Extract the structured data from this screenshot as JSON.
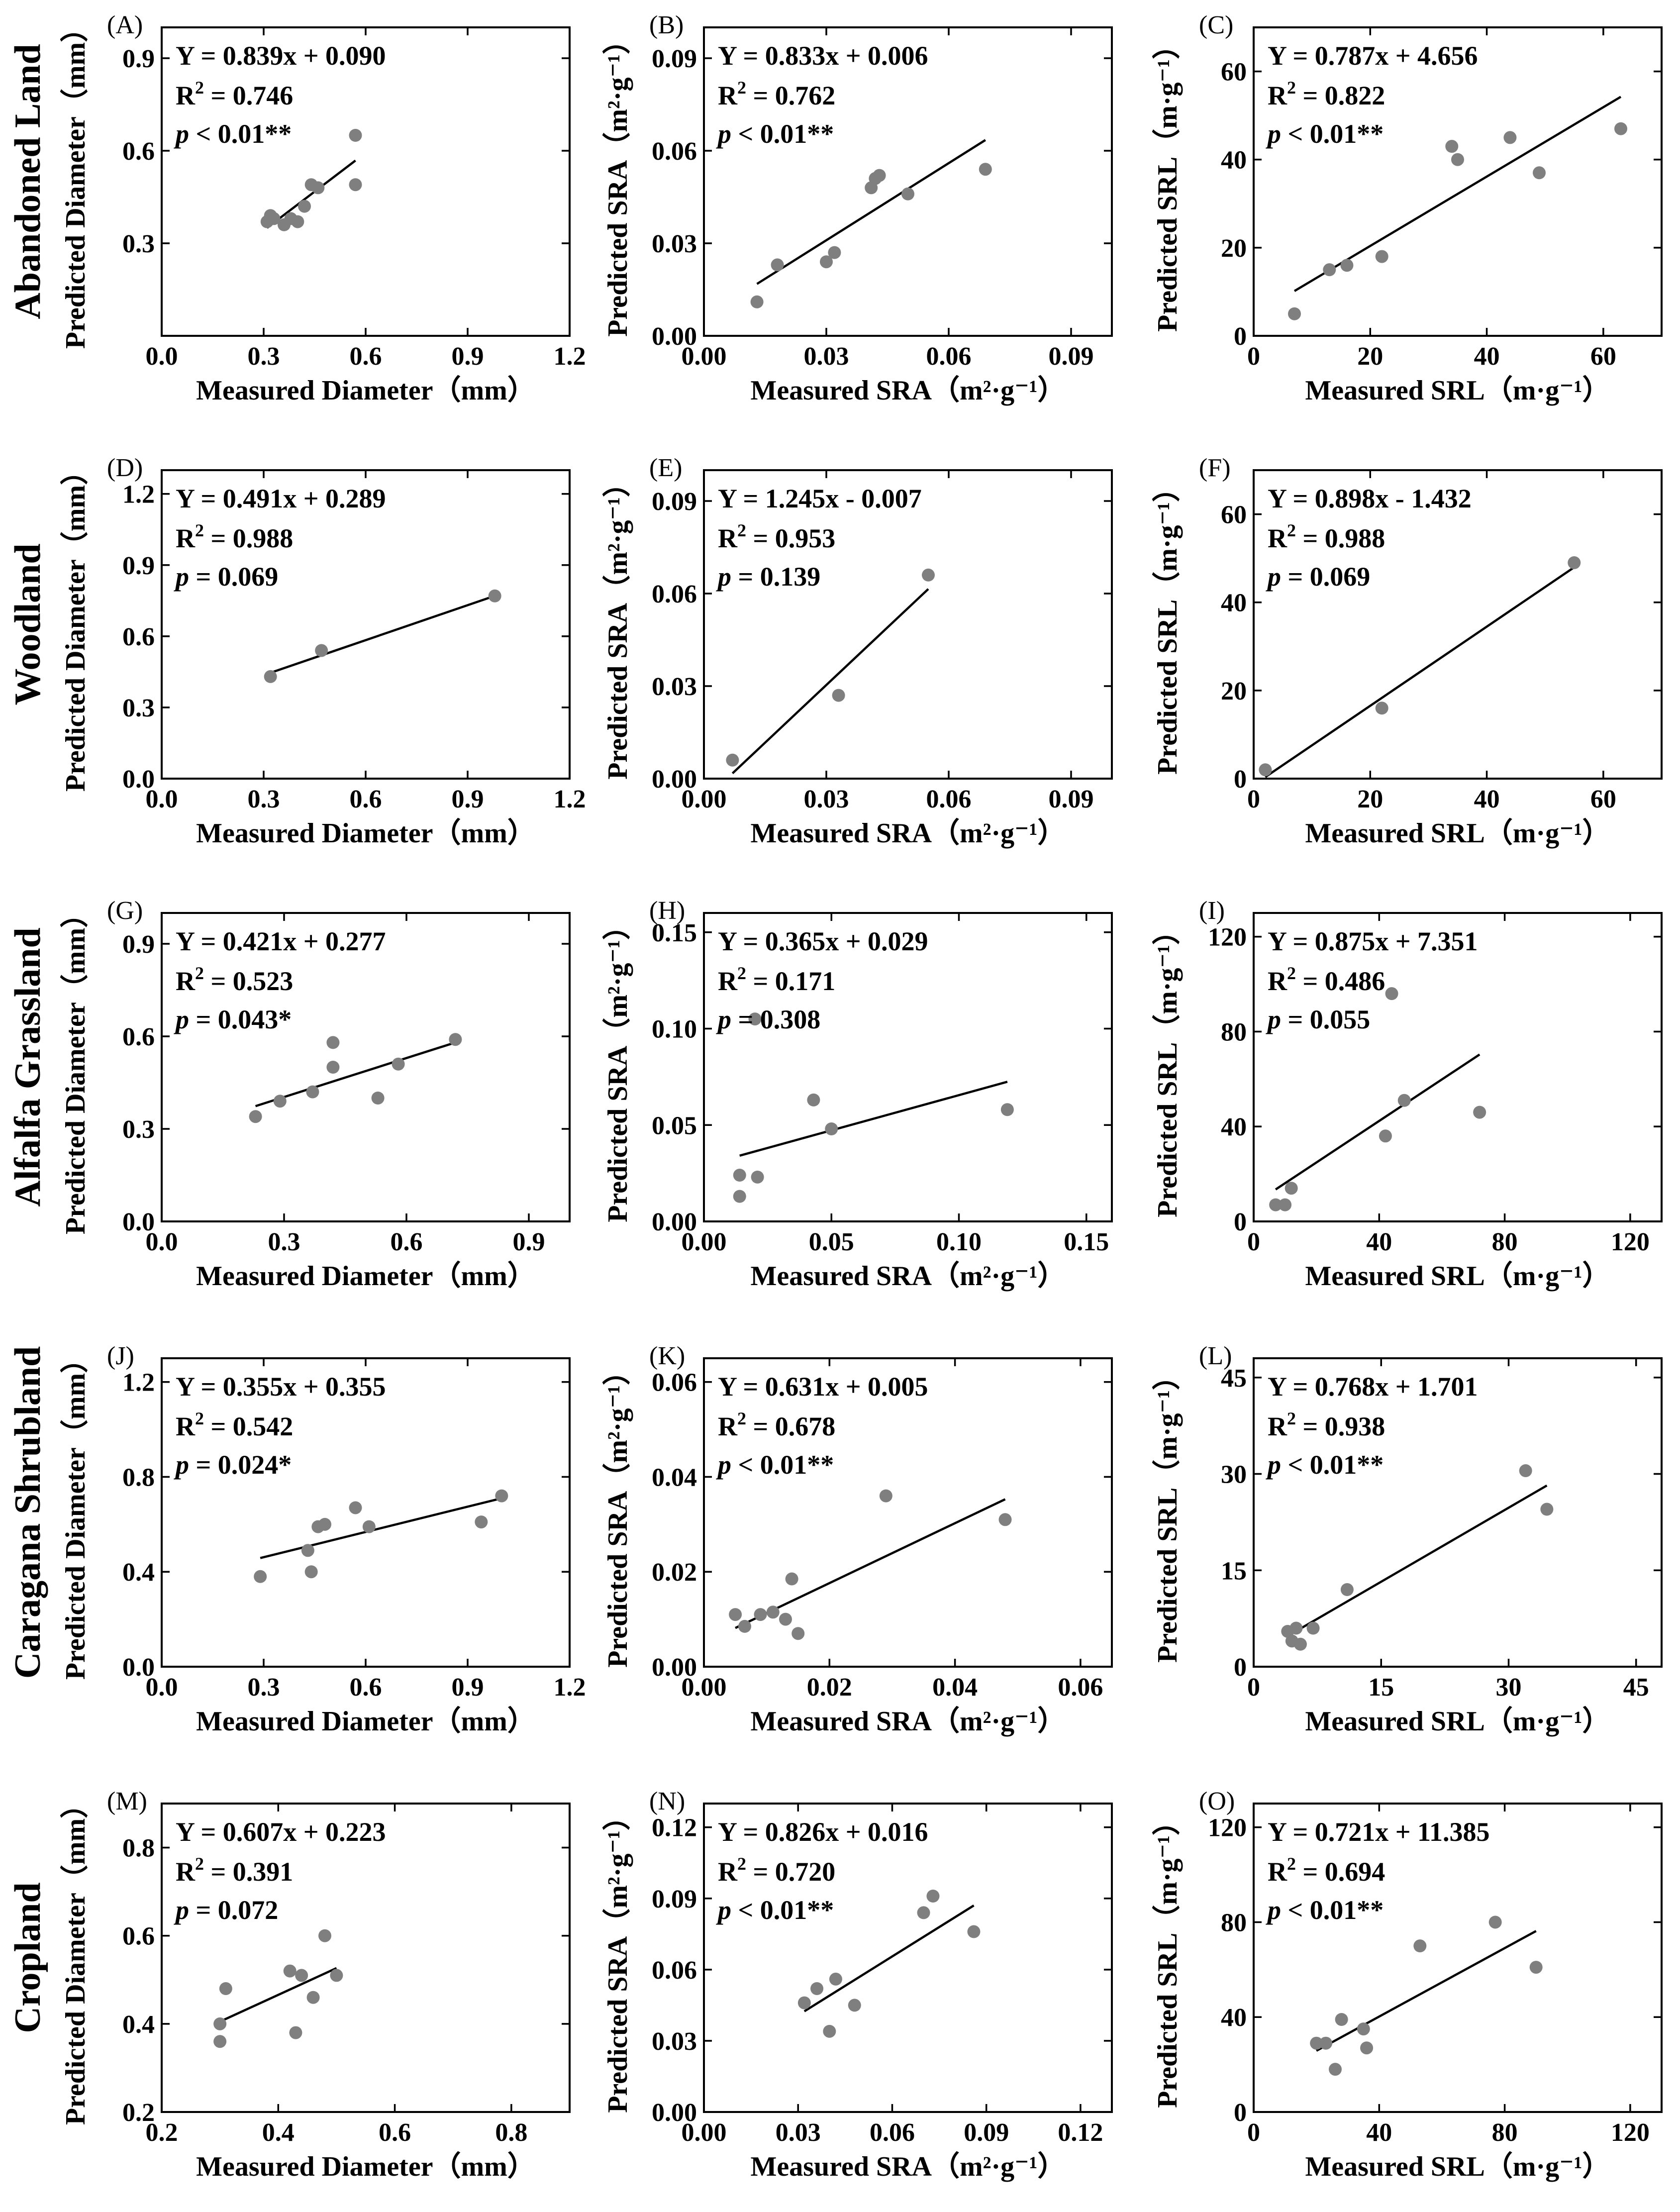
{
  "figure": {
    "point_color": "#7f7f7f",
    "line_color": "#000000",
    "rows": [
      {
        "title": "Abandoned Land"
      },
      {
        "title": "Woodland"
      },
      {
        "title": "Alfalfa Grassland"
      },
      {
        "title": "Caragana Shrubland"
      },
      {
        "title": "Cropland"
      }
    ]
  },
  "axis_labels": {
    "diameter": {
      "x": "Measured Diameter（mm）",
      "y": "Predicted Diameter（mm）"
    },
    "sra": {
      "x": "Measured SRA（m²·g⁻¹）",
      "y": "Predicted SRA（m²·g⁻¹）"
    },
    "srl": {
      "x": "Measured SRL（m·g⁻¹）",
      "y": "Predicted SRL（m·g⁻¹）"
    }
  },
  "chart_data": [
    {
      "panel": "(A)",
      "row": 0,
      "col": 0,
      "type": "scatter",
      "variable": "diameter",
      "xlim": [
        0,
        1.2
      ],
      "ylim": [
        0,
        1.0
      ],
      "xticks": [
        "0.0",
        "0.3",
        "0.6",
        "0.9",
        "1.2"
      ],
      "yticks": [
        "0.3",
        "0.6",
        "0.9"
      ],
      "ytickvals": [
        0.3,
        0.6,
        0.9
      ],
      "x": [
        0.31,
        0.32,
        0.33,
        0.36,
        0.38,
        0.4,
        0.42,
        0.44,
        0.46,
        0.57,
        0.57
      ],
      "y": [
        0.37,
        0.39,
        0.38,
        0.36,
        0.38,
        0.37,
        0.42,
        0.49,
        0.48,
        0.49,
        0.65
      ],
      "fit": {
        "slope": 0.839,
        "intercept": 0.09,
        "x_range": [
          0.31,
          0.57
        ]
      },
      "equation": "Y = 0.839x + 0.090",
      "r2": "= 0.746",
      "p_text": " < 0.01**"
    },
    {
      "panel": "(B)",
      "row": 0,
      "col": 1,
      "type": "scatter",
      "variable": "sra",
      "xlim": [
        0,
        0.1
      ],
      "ylim": [
        0,
        0.1
      ],
      "xticks": [
        "0.00",
        "0.03",
        "0.06",
        "0.09"
      ],
      "yticks": [
        "0.00",
        "0.03",
        "0.06",
        "0.09"
      ],
      "ytickvals": [
        0,
        0.03,
        0.06,
        0.09
      ],
      "x": [
        0.013,
        0.018,
        0.03,
        0.032,
        0.041,
        0.042,
        0.043,
        0.05,
        0.069
      ],
      "y": [
        0.011,
        0.023,
        0.024,
        0.027,
        0.048,
        0.051,
        0.052,
        0.046,
        0.054
      ],
      "fit": {
        "slope": 0.833,
        "intercept": 0.006,
        "x_range": [
          0.013,
          0.069
        ]
      },
      "equation": "Y = 0.833x + 0.006",
      "r2": "= 0.762",
      "p_text": " < 0.01**"
    },
    {
      "panel": "(C)",
      "row": 0,
      "col": 2,
      "type": "scatter",
      "variable": "srl",
      "xlim": [
        0,
        70
      ],
      "ylim": [
        0,
        70
      ],
      "xticks": [
        "0",
        "20",
        "40",
        "60"
      ],
      "yticks": [
        "0",
        "20",
        "40",
        "60"
      ],
      "ytickvals": [
        0,
        20,
        40,
        60
      ],
      "x": [
        7,
        13,
        16,
        22,
        34,
        35,
        44,
        49,
        63
      ],
      "y": [
        5,
        15,
        16,
        18,
        43,
        40,
        45,
        37,
        47
      ],
      "fit": {
        "slope": 0.787,
        "intercept": 4.656,
        "x_range": [
          7,
          63
        ]
      },
      "equation": "Y = 0.787x + 4.656",
      "r2": "= 0.822",
      "p_text": " < 0.01**"
    },
    {
      "panel": "(D)",
      "row": 1,
      "col": 0,
      "type": "scatter",
      "variable": "diameter",
      "xlim": [
        0,
        1.2
      ],
      "ylim": [
        0,
        1.3
      ],
      "xticks": [
        "0.0",
        "0.3",
        "0.6",
        "0.9",
        "1.2"
      ],
      "yticks": [
        "0.0",
        "0.3",
        "0.6",
        "0.9",
        "1.2"
      ],
      "ytickvals": [
        0,
        0.3,
        0.6,
        0.9,
        1.2
      ],
      "x": [
        0.32,
        0.47,
        0.98
      ],
      "y": [
        0.43,
        0.54,
        0.77
      ],
      "fit": {
        "slope": 0.491,
        "intercept": 0.289,
        "x_range": [
          0.32,
          0.98
        ]
      },
      "equation": "Y = 0.491x + 0.289",
      "r2": "= 0.988",
      "p_text": " = 0.069"
    },
    {
      "panel": "(E)",
      "row": 1,
      "col": 1,
      "type": "scatter",
      "variable": "sra",
      "xlim": [
        0,
        0.1
      ],
      "ylim": [
        0,
        0.1
      ],
      "xticks": [
        "0.00",
        "0.03",
        "0.06",
        "0.09"
      ],
      "yticks": [
        "0.00",
        "0.03",
        "0.06",
        "0.09"
      ],
      "ytickvals": [
        0,
        0.03,
        0.06,
        0.09
      ],
      "x": [
        0.007,
        0.033,
        0.055
      ],
      "y": [
        0.006,
        0.027,
        0.066
      ],
      "fit": {
        "slope": 1.245,
        "intercept": -0.007,
        "x_range": [
          0.007,
          0.055
        ]
      },
      "equation": "Y = 1.245x - 0.007",
      "r2": "= 0.953",
      "p_text": " = 0.139"
    },
    {
      "panel": "(F)",
      "row": 1,
      "col": 2,
      "type": "scatter",
      "variable": "srl",
      "xlim": [
        0,
        70
      ],
      "ylim": [
        0,
        70
      ],
      "xticks": [
        "0",
        "20",
        "40",
        "60"
      ],
      "yticks": [
        "0",
        "20",
        "40",
        "60"
      ],
      "ytickvals": [
        0,
        20,
        40,
        60
      ],
      "x": [
        2,
        22,
        55
      ],
      "y": [
        2,
        16,
        49
      ],
      "fit": {
        "slope": 0.898,
        "intercept": -1.432,
        "x_range": [
          2,
          55
        ]
      },
      "equation": "Y = 0.898x - 1.432",
      "r2": "= 0.988",
      "p_text": " = 0.069"
    },
    {
      "panel": "(G)",
      "row": 2,
      "col": 0,
      "type": "scatter",
      "variable": "diameter",
      "xlim": [
        0,
        1.0
      ],
      "ylim": [
        0,
        1.0
      ],
      "xticks": [
        "0.0",
        "0.3",
        "0.6",
        "0.9"
      ],
      "yticks": [
        "0.0",
        "0.3",
        "0.6",
        "0.9"
      ],
      "ytickvals": [
        0,
        0.3,
        0.6,
        0.9
      ],
      "x": [
        0.23,
        0.29,
        0.37,
        0.42,
        0.42,
        0.53,
        0.58,
        0.72
      ],
      "y": [
        0.34,
        0.39,
        0.42,
        0.5,
        0.58,
        0.4,
        0.51,
        0.59
      ],
      "fit": {
        "slope": 0.421,
        "intercept": 0.277,
        "x_range": [
          0.23,
          0.72
        ]
      },
      "equation": "Y = 0.421x + 0.277",
      "r2": "= 0.523",
      "p_text": " = 0.043*"
    },
    {
      "panel": "(H)",
      "row": 2,
      "col": 1,
      "type": "scatter",
      "variable": "sra",
      "xlim": [
        0,
        0.16
      ],
      "ylim": [
        0,
        0.16
      ],
      "xticks": [
        "0.00",
        "0.05",
        "0.10",
        "0.15"
      ],
      "yticks": [
        "0.00",
        "0.05",
        "0.10",
        "0.15"
      ],
      "ytickvals": [
        0,
        0.05,
        0.1,
        0.15
      ],
      "x": [
        0.014,
        0.014,
        0.021,
        0.043,
        0.05,
        0.119,
        0.02
      ],
      "y": [
        0.013,
        0.024,
        0.023,
        0.063,
        0.048,
        0.058,
        0.105
      ],
      "fit": {
        "slope": 0.365,
        "intercept": 0.029,
        "x_range": [
          0.014,
          0.119
        ]
      },
      "equation": "Y = 0.365x + 0.029",
      "r2": "= 0.171",
      "p_text": " = 0.308"
    },
    {
      "panel": "(I)",
      "row": 2,
      "col": 2,
      "type": "scatter",
      "variable": "srl",
      "xlim": [
        0,
        130
      ],
      "ylim": [
        0,
        130
      ],
      "xticks": [
        "0",
        "40",
        "80",
        "120"
      ],
      "yticks": [
        "0",
        "40",
        "80",
        "120"
      ],
      "ytickvals": [
        0,
        40,
        80,
        120
      ],
      "x": [
        7,
        10,
        12,
        42,
        44,
        48,
        72
      ],
      "y": [
        7,
        7,
        14,
        36,
        96,
        51,
        46
      ],
      "fit": {
        "slope": 0.875,
        "intercept": 7.351,
        "x_range": [
          7,
          72
        ]
      },
      "equation": "Y = 0.875x + 7.351",
      "r2": "= 0.486",
      "p_text": " = 0.055"
    },
    {
      "panel": "(J)",
      "row": 3,
      "col": 0,
      "type": "scatter",
      "variable": "diameter",
      "xlim": [
        0,
        1.2
      ],
      "ylim": [
        0,
        1.3
      ],
      "xticks": [
        "0.0",
        "0.3",
        "0.6",
        "0.9",
        "1.2"
      ],
      "yticks": [
        "0.0",
        "0.4",
        "0.8",
        "1.2"
      ],
      "ytickvals": [
        0,
        0.4,
        0.8,
        1.2
      ],
      "x": [
        0.29,
        0.43,
        0.44,
        0.46,
        0.48,
        0.57,
        0.61,
        0.94,
        1.0
      ],
      "y": [
        0.38,
        0.49,
        0.4,
        0.59,
        0.6,
        0.67,
        0.59,
        0.61,
        0.72
      ],
      "fit": {
        "slope": 0.355,
        "intercept": 0.355,
        "x_range": [
          0.29,
          1.0
        ]
      },
      "equation": "Y = 0.355x + 0.355",
      "r2": "= 0.542",
      "p_text": " = 0.024*"
    },
    {
      "panel": "(K)",
      "row": 3,
      "col": 1,
      "type": "scatter",
      "variable": "sra",
      "xlim": [
        0,
        0.065
      ],
      "ylim": [
        0,
        0.065
      ],
      "xticks": [
        "0.00",
        "0.02",
        "0.04",
        "0.06"
      ],
      "yticks": [
        "0.00",
        "0.02",
        "0.04",
        "0.06"
      ],
      "ytickvals": [
        0,
        0.02,
        0.04,
        0.06
      ],
      "x": [
        0.005,
        0.0065,
        0.009,
        0.011,
        0.013,
        0.014,
        0.015,
        0.029,
        0.048
      ],
      "y": [
        0.011,
        0.0085,
        0.011,
        0.0115,
        0.01,
        0.0185,
        0.007,
        0.036,
        0.031
      ],
      "fit": {
        "slope": 0.631,
        "intercept": 0.005,
        "x_range": [
          0.005,
          0.048
        ]
      },
      "equation": "Y = 0.631x + 0.005",
      "r2": "= 0.678",
      "p_text": " < 0.01**"
    },
    {
      "panel": "(L)",
      "row": 3,
      "col": 2,
      "type": "scatter",
      "variable": "srl",
      "xlim": [
        0,
        48
      ],
      "ylim": [
        0,
        48
      ],
      "xticks": [
        "0",
        "15",
        "30",
        "45"
      ],
      "yticks": [
        "0",
        "15",
        "30",
        "45"
      ],
      "ytickvals": [
        0,
        15,
        30,
        45
      ],
      "x": [
        4,
        4.5,
        5,
        5.5,
        7,
        11,
        32,
        34.5
      ],
      "y": [
        5.5,
        4,
        6,
        3.5,
        6,
        12,
        30.5,
        24.5
      ],
      "fit": {
        "slope": 0.768,
        "intercept": 1.701,
        "x_range": [
          4,
          34.5
        ]
      },
      "equation": "Y = 0.768x + 1.701",
      "r2": "= 0.938",
      "p_text": " < 0.01**"
    },
    {
      "panel": "(M)",
      "row": 4,
      "col": 0,
      "type": "scatter",
      "variable": "diameter",
      "xlim": [
        0.2,
        0.9
      ],
      "ylim": [
        0.2,
        0.9
      ],
      "xticks": [
        "0.2",
        "0.4",
        "0.6",
        "0.8"
      ],
      "yticks": [
        "0.2",
        "0.4",
        "0.6",
        "0.8"
      ],
      "ytickvals": [
        0.2,
        0.4,
        0.6,
        0.8
      ],
      "x": [
        0.3,
        0.3,
        0.31,
        0.42,
        0.43,
        0.44,
        0.46,
        0.48,
        0.5
      ],
      "y": [
        0.4,
        0.36,
        0.48,
        0.52,
        0.38,
        0.51,
        0.46,
        0.6,
        0.51
      ],
      "fit": {
        "slope": 0.607,
        "intercept": 0.223,
        "x_range": [
          0.3,
          0.5
        ]
      },
      "equation": "Y = 0.607x + 0.223",
      "r2": "= 0.391",
      "p_text": " = 0.072"
    },
    {
      "panel": "(N)",
      "row": 4,
      "col": 1,
      "type": "scatter",
      "variable": "sra",
      "xlim": [
        0,
        0.13
      ],
      "ylim": [
        0,
        0.13
      ],
      "xticks": [
        "0.00",
        "0.03",
        "0.06",
        "0.09",
        "0.12"
      ],
      "yticks": [
        "0.00",
        "0.03",
        "0.06",
        "0.09",
        "0.12"
      ],
      "ytickvals": [
        0,
        0.03,
        0.06,
        0.09,
        0.12
      ],
      "x": [
        0.032,
        0.036,
        0.04,
        0.042,
        0.048,
        0.07,
        0.073,
        0.086
      ],
      "y": [
        0.046,
        0.052,
        0.034,
        0.056,
        0.045,
        0.084,
        0.091,
        0.076
      ],
      "fit": {
        "slope": 0.826,
        "intercept": 0.016,
        "x_range": [
          0.032,
          0.086
        ]
      },
      "equation": "Y = 0.826x + 0.016",
      "r2": "= 0.720",
      "p_text": " < 0.01**"
    },
    {
      "panel": "(O)",
      "row": 4,
      "col": 2,
      "type": "scatter",
      "variable": "srl",
      "xlim": [
        0,
        130
      ],
      "ylim": [
        0,
        130
      ],
      "xticks": [
        "0",
        "40",
        "80",
        "120"
      ],
      "yticks": [
        "0",
        "40",
        "80",
        "120"
      ],
      "ytickvals": [
        0,
        40,
        80,
        120
      ],
      "x": [
        20,
        23,
        26,
        28,
        35,
        36,
        53,
        77,
        90
      ],
      "y": [
        29,
        29,
        18,
        39,
        35,
        27,
        70,
        80,
        61
      ],
      "fit": {
        "slope": 0.721,
        "intercept": 11.385,
        "x_range": [
          20,
          90
        ]
      },
      "equation": "Y = 0.721x + 11.385",
      "r2": "= 0.694",
      "p_text": " < 0.01**"
    }
  ]
}
